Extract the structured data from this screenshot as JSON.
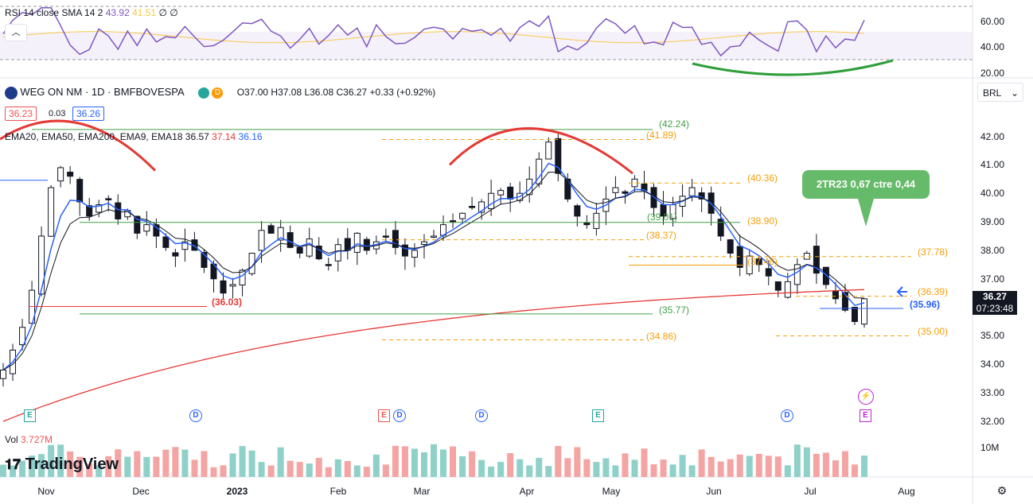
{
  "rsi": {
    "label": "RSI 14 close SMA 14 2",
    "value1": "43.92",
    "value2": "41.51",
    "value3": "∅ ∅",
    "ticks": [
      "60.00",
      "40.00",
      "20.00"
    ]
  },
  "header": {
    "symbol": "WEG ON NM · 1D · BMFBOVESPA",
    "ohlc": "O37.00 H37.08 L36.08 C36.27 +0.33 (+0.92%)",
    "bid": "36.23",
    "spread": "0.03",
    "ask": "36.26",
    "currency": "BRL"
  },
  "ema_legend": {
    "label": "EMA20, EMA50, EMA200, EMA9, EMA18",
    "v1": "36.57",
    "v2": "37.14",
    "v3": "36.16"
  },
  "price_axis": [
    "42.00",
    "41.00",
    "40.00",
    "39.00",
    "38.00",
    "37.00",
    "36.00",
    "35.00",
    "34.00",
    "33.00",
    "32.00"
  ],
  "last_price": {
    "price": "36.27",
    "countdown": "07:23:48"
  },
  "volume": {
    "label": "Vol",
    "value": "3.727M",
    "tick": "10M"
  },
  "time_axis": [
    "Nov",
    "Dec",
    "2023",
    "Feb",
    "Mar",
    "Apr",
    "May",
    "Jun",
    "Jul",
    "Aug"
  ],
  "brand": "TradingView",
  "callout": "2TR23 0,67 ctre 0,44",
  "levels": [
    {
      "label": "(42.24)"
    },
    {
      "label": "(41.89)"
    },
    {
      "label": "(40.36)"
    },
    {
      "label": "(38.90)"
    },
    {
      "label": "(39.01)"
    },
    {
      "label": "(38.37)"
    },
    {
      "label": "(37.78)"
    },
    {
      "label": "(37.48)"
    },
    {
      "label": "(36.39)"
    },
    {
      "label": "(35.96)"
    },
    {
      "label": "(36.03)"
    },
    {
      "label": "(35.77)"
    },
    {
      "label": "(34.86)"
    },
    {
      "label": "(35.00)"
    }
  ],
  "events": [
    "E",
    "D",
    "E",
    "D",
    "D",
    "E",
    "D",
    "E"
  ],
  "colors": {
    "up": "#26a69a",
    "down": "#ef5350",
    "ema_blue": "#2962ff",
    "ema_red": "#e53935",
    "rsi": "#7e57c2"
  },
  "chart_data": {
    "type": "candlestick",
    "close_series": [
      33.8,
      34.5,
      35.3,
      36.6,
      38.5,
      40.2,
      40.9,
      40.6,
      39.7,
      39.2,
      39.6,
      39.8,
      39.1,
      39.4,
      38.6,
      38.9,
      38.5,
      38.1,
      37.8,
      38.3,
      38.0,
      37.4,
      37.0,
      36.5,
      36.8,
      37.3,
      37.9,
      38.7,
      38.6,
      38.8,
      38.1,
      37.9,
      38.4,
      37.7,
      37.5,
      38.2,
      38.0,
      38.6,
      38.0,
      38.3,
      38.5,
      38.1,
      37.8,
      38.0,
      38.3,
      38.5,
      38.9,
      39.0,
      39.3,
      39.5,
      39.7,
      40.0,
      40.1,
      39.8,
      40.0,
      40.5,
      41.2,
      41.8,
      40.7,
      39.8,
      39.2,
      38.9,
      39.3,
      39.8,
      40.2,
      40.0,
      40.5,
      40.1,
      39.5,
      39.2,
      39.6,
      39.9,
      40.2,
      39.8,
      39.3,
      38.5,
      37.9,
      37.4,
      37.8,
      37.5,
      37.1,
      36.6,
      36.9,
      37.5,
      37.9,
      37.2,
      36.8,
      36.3,
      35.9,
      35.5,
      36.3
    ],
    "ema_levels": {
      "ema20": "36.57",
      "ema50": "37.14",
      "ema200": "36.16"
    },
    "x_labels": [
      "Nov",
      "Dec",
      "2023",
      "Feb",
      "Mar",
      "Apr",
      "May",
      "Jun",
      "Jul",
      "Aug"
    ],
    "ylim": [
      32.0,
      42.6
    ],
    "rsi_ylim": [
      20,
      70
    ]
  }
}
